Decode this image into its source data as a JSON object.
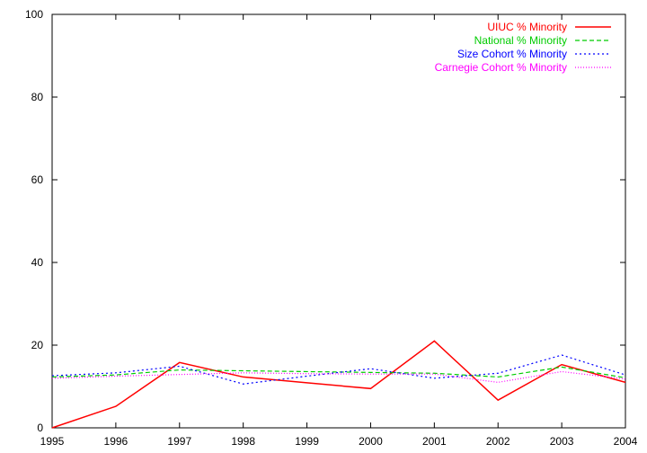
{
  "chart_data": {
    "type": "line",
    "title": "",
    "xlabel": "",
    "ylabel": "",
    "x": [
      1995,
      1996,
      1997,
      1998,
      1999,
      2000,
      2001,
      2002,
      2003,
      2004
    ],
    "xlim": [
      1995,
      2004
    ],
    "ylim": [
      0,
      100
    ],
    "yticks": [
      0,
      20,
      40,
      60,
      80,
      100
    ],
    "grid": false,
    "legend_position": "top-right",
    "series": [
      {
        "name": "UIUC % Minority",
        "color": "#ff0000",
        "dash": "solid",
        "values": [
          0,
          5.2,
          15.8,
          12.3,
          10.9,
          9.5,
          21.0,
          6.7,
          15.3,
          11.0
        ]
      },
      {
        "name": "National % Minority",
        "color": "#00cc00",
        "dash": "dashed",
        "values": [
          12.3,
          12.8,
          14.0,
          13.8,
          13.6,
          13.4,
          13.2,
          12.3,
          14.7,
          12.1
        ]
      },
      {
        "name": "Size Cohort % Minority",
        "color": "#0000ff",
        "dash": "dotted",
        "values": [
          12.6,
          13.3,
          14.9,
          10.6,
          12.5,
          14.3,
          12.0,
          13.2,
          17.6,
          12.8
        ]
      },
      {
        "name": "Carnegie Cohort % Minority",
        "color": "#ff00ff",
        "dash": "finedotted",
        "values": [
          12.0,
          12.5,
          12.9,
          13.3,
          13.1,
          13.0,
          13.0,
          11.0,
          13.6,
          11.8
        ]
      }
    ]
  }
}
